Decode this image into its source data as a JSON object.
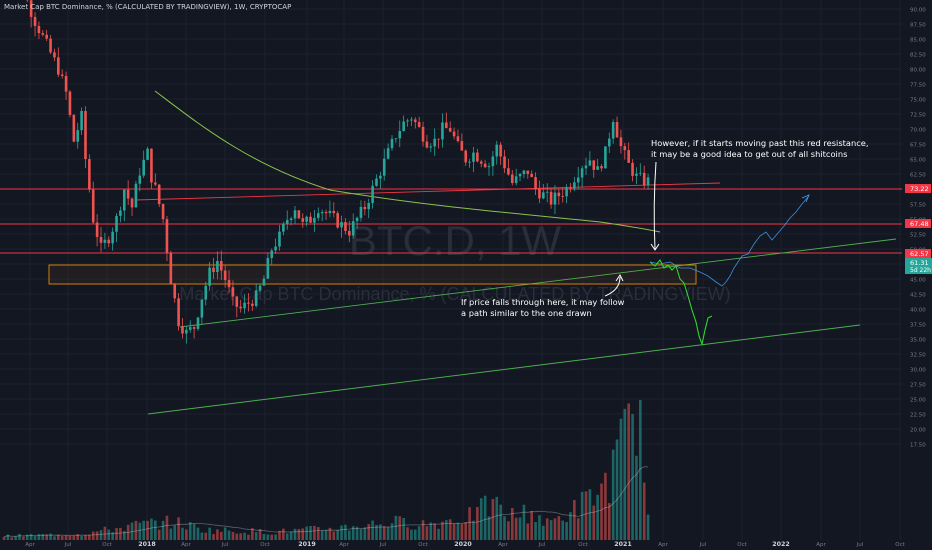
{
  "header": {
    "title": "Market Cap BTC Dominance, % (CALCULATED BY TRADINGVIEW), 1W, CRYPTOCAP"
  },
  "watermark": {
    "symbol": "BTC.D, 1W",
    "name": "Market Cap BTC Dominance, % (CALCULATED BY TRADINGVIEW)"
  },
  "annotations": {
    "top_line1": "However, if it starts moving past this red resistance,",
    "top_line2": "it may be a good idea to get out of all shitcoins",
    "bottom_line1": "If price falls through here, it may follow",
    "bottom_line2": "a path similar to the one drawn"
  },
  "price_labels": {
    "resistance_high": "73.22",
    "resistance_mid": "67.48",
    "resistance_low": "62.57",
    "current_price": "61.31",
    "countdown": "5d 22h"
  },
  "colors": {
    "background": "#131722",
    "up": "#26a69a",
    "down": "#ef5350",
    "resistance": "#f23645",
    "trendline": "#4caf50",
    "ma": "#8bc34a",
    "support_box": "#ff9800",
    "projection": "#2bd92b",
    "text": "#d1d4dc",
    "axis_text": "#787b86"
  },
  "chart_data": {
    "type": "candlestick",
    "title": "Market Cap BTC Dominance, % (CALCULATED BY TRADINGVIEW), 1W, CRYPTOCAP",
    "ylim": [
      15,
      105
    ],
    "y_ticks": [
      17.5,
      20,
      22.5,
      25,
      27.5,
      30,
      32.5,
      35,
      37.5,
      40,
      42.5,
      45,
      47.5,
      50,
      52.5,
      55,
      57.5,
      60,
      62.5,
      65,
      67.5,
      70,
      72.5,
      75,
      77.5,
      80,
      82.5,
      85,
      87.5,
      90,
      92.5,
      95,
      97.5,
      100,
      102.5,
      105
    ],
    "x_ticks": [
      "Apr",
      "Jul",
      "Oct",
      "2018",
      "Apr",
      "Jul",
      "Oct",
      "2019",
      "Apr",
      "Jul",
      "Oct",
      "2020",
      "Apr",
      "Jul",
      "Oct",
      "2021",
      "Apr",
      "Jul",
      "Oct",
      "2022",
      "Apr",
      "Jul",
      "Oct"
    ],
    "anchors": [
      {
        "w": 0,
        "v": 96
      },
      {
        "w": 3,
        "v": 96.5
      },
      {
        "w": 6,
        "v": 93
      },
      {
        "w": 9,
        "v": 88
      },
      {
        "w": 12,
        "v": 84
      },
      {
        "w": 15,
        "v": 80
      },
      {
        "w": 17,
        "v": 76
      },
      {
        "w": 19,
        "v": 68
      },
      {
        "w": 21,
        "v": 72
      },
      {
        "w": 22,
        "v": 65
      },
      {
        "w": 24,
        "v": 55
      },
      {
        "w": 26,
        "v": 50
      },
      {
        "w": 28,
        "v": 52
      },
      {
        "w": 30,
        "v": 55
      },
      {
        "w": 32,
        "v": 60
      },
      {
        "w": 34,
        "v": 57
      },
      {
        "w": 36,
        "v": 63
      },
      {
        "w": 38,
        "v": 66
      },
      {
        "w": 39,
        "v": 62
      },
      {
        "w": 40,
        "v": 60
      },
      {
        "w": 42,
        "v": 55
      },
      {
        "w": 44,
        "v": 45
      },
      {
        "w": 46,
        "v": 38
      },
      {
        "w": 48,
        "v": 36
      },
      {
        "w": 50,
        "v": 37
      },
      {
        "w": 52,
        "v": 42
      },
      {
        "w": 54,
        "v": 46
      },
      {
        "w": 56,
        "v": 48
      },
      {
        "w": 58,
        "v": 45
      },
      {
        "w": 60,
        "v": 41
      },
      {
        "w": 62,
        "v": 40
      },
      {
        "w": 64,
        "v": 41
      },
      {
        "w": 66,
        "v": 42
      },
      {
        "w": 68,
        "v": 45
      },
      {
        "w": 70,
        "v": 50
      },
      {
        "w": 72,
        "v": 52
      },
      {
        "w": 74,
        "v": 55
      },
      {
        "w": 76,
        "v": 57
      },
      {
        "w": 78,
        "v": 54
      },
      {
        "w": 80,
        "v": 55
      },
      {
        "w": 82,
        "v": 57
      },
      {
        "w": 84,
        "v": 56
      },
      {
        "w": 86,
        "v": 55
      },
      {
        "w": 88,
        "v": 54
      },
      {
        "w": 90,
        "v": 53
      },
      {
        "w": 92,
        "v": 55
      },
      {
        "w": 94,
        "v": 57
      },
      {
        "w": 96,
        "v": 60
      },
      {
        "w": 98,
        "v": 63
      },
      {
        "w": 100,
        "v": 66
      },
      {
        "w": 102,
        "v": 69
      },
      {
        "w": 104,
        "v": 71
      },
      {
        "w": 106,
        "v": 72
      },
      {
        "w": 108,
        "v": 70
      },
      {
        "w": 110,
        "v": 68
      },
      {
        "w": 112,
        "v": 68
      },
      {
        "w": 114,
        "v": 70
      },
      {
        "w": 116,
        "v": 70
      },
      {
        "w": 118,
        "v": 67
      },
      {
        "w": 120,
        "v": 65
      },
      {
        "w": 122,
        "v": 66
      },
      {
        "w": 124,
        "v": 65
      },
      {
        "w": 126,
        "v": 64
      },
      {
        "w": 128,
        "v": 67
      },
      {
        "w": 130,
        "v": 64
      },
      {
        "w": 132,
        "v": 61
      },
      {
        "w": 134,
        "v": 62
      },
      {
        "w": 136,
        "v": 63
      },
      {
        "w": 138,
        "v": 60
      },
      {
        "w": 140,
        "v": 59
      },
      {
        "w": 142,
        "v": 58
      },
      {
        "w": 144,
        "v": 59
      },
      {
        "w": 146,
        "v": 60
      },
      {
        "w": 148,
        "v": 62
      },
      {
        "w": 150,
        "v": 64
      },
      {
        "w": 152,
        "v": 65
      },
      {
        "w": 154,
        "v": 63
      },
      {
        "w": 156,
        "v": 66
      },
      {
        "w": 158,
        "v": 72
      },
      {
        "w": 160,
        "v": 67
      },
      {
        "w": 162,
        "v": 64
      },
      {
        "w": 164,
        "v": 62
      },
      {
        "w": 166,
        "v": 61.3
      }
    ],
    "volume_anchors": [
      {
        "w": 0,
        "v": 0.02
      },
      {
        "w": 20,
        "v": 0.03
      },
      {
        "w": 36,
        "v": 0.08
      },
      {
        "w": 44,
        "v": 0.09
      },
      {
        "w": 52,
        "v": 0.05
      },
      {
        "w": 70,
        "v": 0.04
      },
      {
        "w": 86,
        "v": 0.06
      },
      {
        "w": 100,
        "v": 0.09
      },
      {
        "w": 110,
        "v": 0.08
      },
      {
        "w": 120,
        "v": 0.12
      },
      {
        "w": 126,
        "v": 0.18
      },
      {
        "w": 130,
        "v": 0.12
      },
      {
        "w": 136,
        "v": 0.14
      },
      {
        "w": 140,
        "v": 0.08
      },
      {
        "w": 146,
        "v": 0.14
      },
      {
        "w": 152,
        "v": 0.22
      },
      {
        "w": 156,
        "v": 0.3
      },
      {
        "w": 160,
        "v": 0.5
      },
      {
        "w": 164,
        "v": 0.75
      },
      {
        "w": 166,
        "v": 0.12
      }
    ],
    "resistance_levels": [
      73.22,
      67.48,
      62.57
    ],
    "support_zone": [
      57.5,
      60.5
    ],
    "current_price": 61.31
  }
}
